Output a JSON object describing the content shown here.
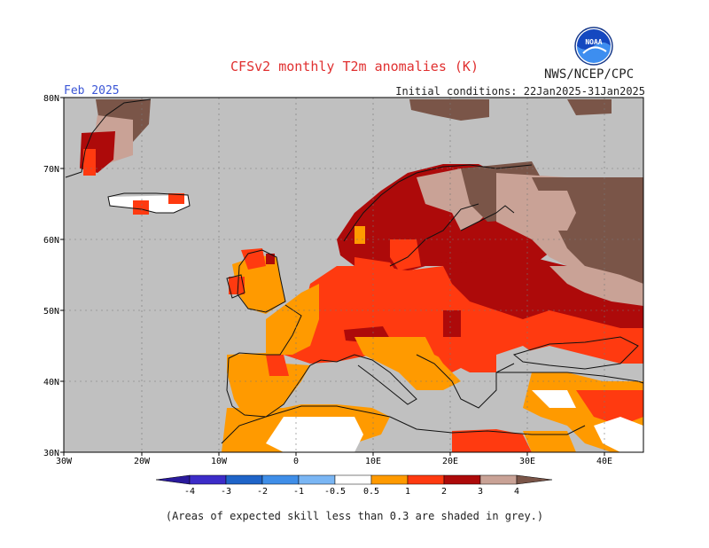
{
  "header": {
    "title": "CFSv2 monthly T2m anomalies (K)",
    "org": "NWS/NCEP/CPC",
    "logo_text": "NOAA",
    "period": "Feb 2025",
    "initial_conditions": "Initial conditions: 22Jan2025-31Jan2025"
  },
  "axes": {
    "lon_labels": [
      "30W",
      "20W",
      "10W",
      "0",
      "10E",
      "20E",
      "30E",
      "40E"
    ],
    "lat_labels": [
      "80N",
      "70N",
      "60N",
      "50N",
      "40N",
      "30N"
    ]
  },
  "legend": {
    "labels": [
      "-4",
      "-3",
      "-2",
      "-1",
      "-0.5",
      "0.5",
      "1",
      "2",
      "3",
      "4"
    ],
    "colors": {
      "lt_neg4": "#2a1a9c",
      "neg4_neg3": "#3c2cc8",
      "neg3_neg2": "#1f64c8",
      "neg2_neg1": "#3f8ee8",
      "neg1_neg05": "#7ab6f4",
      "neutral": "#ffffff",
      "p05_1": "#ff9a00",
      "p1_2": "#ff3a10",
      "p2_3": "#ad0a0a",
      "p3_4": "#c9a296",
      "gt_4": "#7a5548",
      "low_skill": "#c0c0c0"
    }
  },
  "footnote": "(Areas of expected skill less than 0.3 are shaded in grey.)"
}
